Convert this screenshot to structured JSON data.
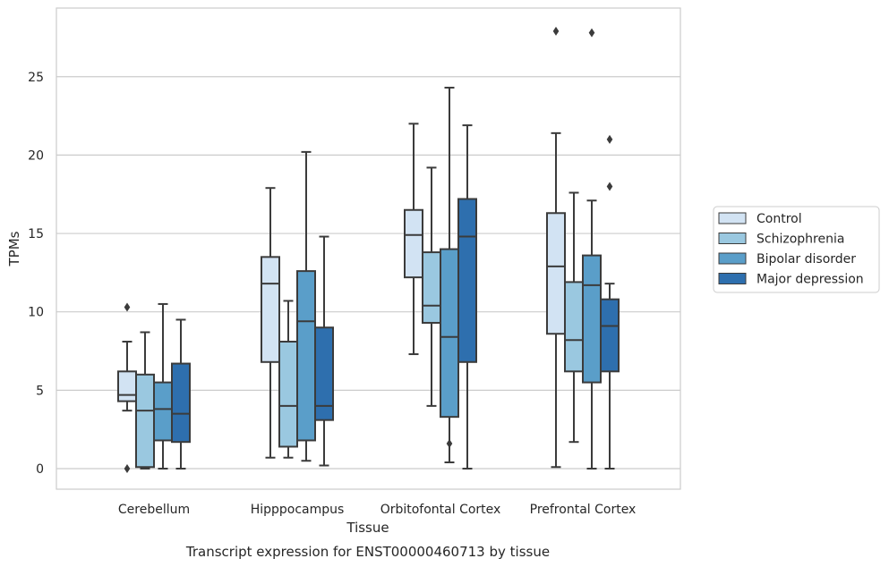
{
  "chart_data": {
    "type": "box",
    "caption": "Transcript expression for ENST00000460713 by tissue",
    "xlabel": "Tissue",
    "ylabel": "TPMs",
    "ylim": [
      -1.3,
      29.3
    ],
    "yticks": [
      0,
      5,
      10,
      15,
      20,
      25
    ],
    "grid": true,
    "legend_position": "right",
    "categories": [
      "Cerebellum",
      "Hipppocampus",
      "Orbitofontal Cortex",
      "Prefrontal Cortex"
    ],
    "series": [
      {
        "name": "Control",
        "color": "#d2e3f3",
        "boxes": [
          {
            "whislo": 3.7,
            "q1": 4.3,
            "med": 4.7,
            "q3": 6.2,
            "whishi": 8.1,
            "fliers": [
              10.3,
              0.0
            ]
          },
          {
            "whislo": 0.7,
            "q1": 6.8,
            "med": 11.8,
            "q3": 13.5,
            "whishi": 17.9,
            "fliers": []
          },
          {
            "whislo": 7.3,
            "q1": 12.2,
            "med": 14.9,
            "q3": 16.5,
            "whishi": 22.0,
            "fliers": []
          },
          {
            "whislo": 0.1,
            "q1": 8.6,
            "med": 12.9,
            "q3": 16.3,
            "whishi": 21.4,
            "fliers": [
              27.9
            ]
          }
        ]
      },
      {
        "name": "Schizophrenia",
        "color": "#9ac8e0",
        "boxes": [
          {
            "whislo": 0.0,
            "q1": 0.1,
            "med": 3.7,
            "q3": 6.0,
            "whishi": 8.7,
            "fliers": []
          },
          {
            "whislo": 0.7,
            "q1": 1.4,
            "med": 4.0,
            "q3": 8.1,
            "whishi": 10.7,
            "fliers": []
          },
          {
            "whislo": 4.0,
            "q1": 9.3,
            "med": 10.4,
            "q3": 13.8,
            "whishi": 19.2,
            "fliers": []
          },
          {
            "whislo": 1.7,
            "q1": 6.2,
            "med": 8.2,
            "q3": 11.9,
            "whishi": 17.6,
            "fliers": []
          }
        ]
      },
      {
        "name": "Bipolar disorder",
        "color": "#5a9ec9",
        "boxes": [
          {
            "whislo": 0.0,
            "q1": 1.8,
            "med": 3.8,
            "q3": 5.5,
            "whishi": 10.5,
            "fliers": []
          },
          {
            "whislo": 0.5,
            "q1": 1.8,
            "med": 9.4,
            "q3": 12.6,
            "whishi": 20.2,
            "fliers": []
          },
          {
            "whislo": 0.4,
            "q1": 3.3,
            "med": 8.4,
            "q3": 14.0,
            "whishi": 24.3,
            "fliers": [
              1.6
            ]
          },
          {
            "whislo": 0.0,
            "q1": 5.5,
            "med": 11.7,
            "q3": 13.6,
            "whishi": 17.1,
            "fliers": [
              27.8
            ]
          }
        ]
      },
      {
        "name": "Major depression",
        "color": "#2e6fae",
        "boxes": [
          {
            "whislo": 0.0,
            "q1": 1.7,
            "med": 3.5,
            "q3": 6.7,
            "whishi": 9.5,
            "fliers": []
          },
          {
            "whislo": 0.2,
            "q1": 3.1,
            "med": 4.0,
            "q3": 9.0,
            "whishi": 14.8,
            "fliers": []
          },
          {
            "whislo": 0.0,
            "q1": 6.8,
            "med": 14.8,
            "q3": 17.2,
            "whishi": 21.9,
            "fliers": []
          },
          {
            "whislo": 0.0,
            "q1": 6.2,
            "med": 9.1,
            "q3": 10.8,
            "whishi": 11.8,
            "fliers": [
              21.0,
              18.0
            ]
          }
        ]
      }
    ]
  }
}
